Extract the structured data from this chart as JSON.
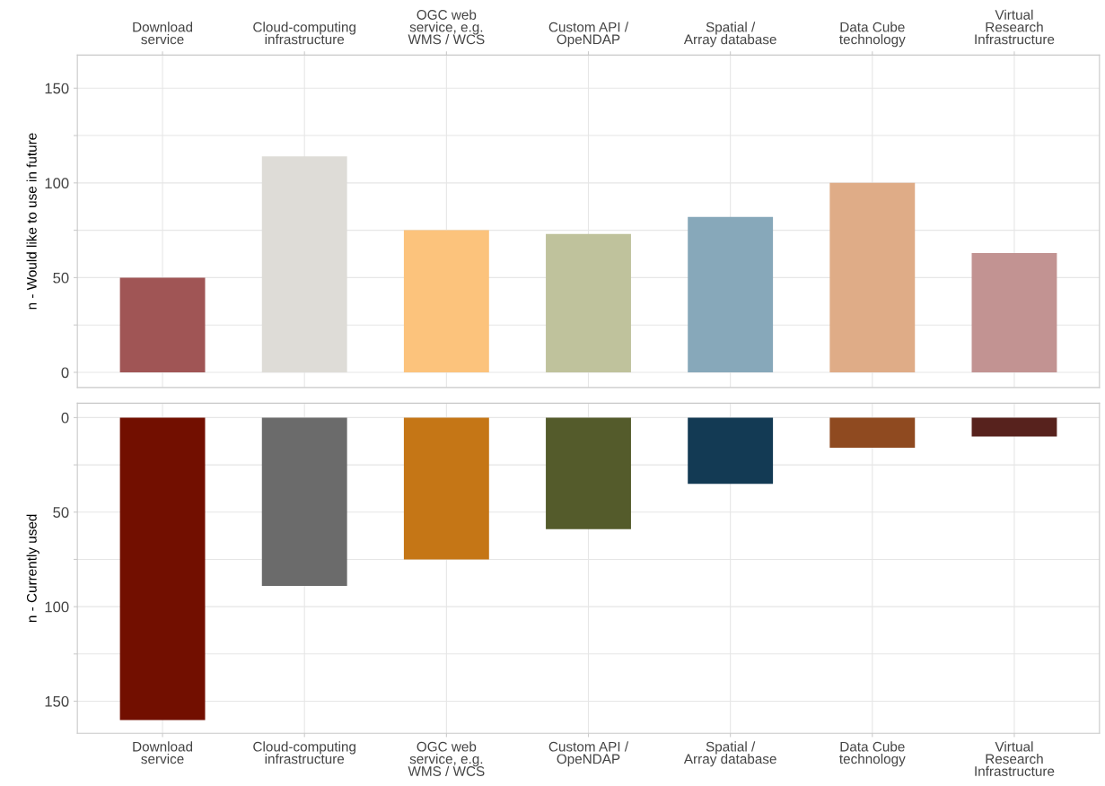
{
  "chart_data": [
    {
      "type": "bar",
      "ylabel": "n - Would like to use in future",
      "categories": [
        "Download\nservice",
        "Cloud-computing\ninfrastructure",
        "OGC web\nservice, e.g.\nWMS / WCS",
        "Custom API /\nOpeNDAP",
        "Spatial /\nArray database",
        "Data Cube\ntechnology",
        "Virtual\nResearch\nInfrastructure"
      ],
      "values": [
        50,
        114,
        75,
        73,
        82,
        100,
        63
      ],
      "colors": [
        "#a05555",
        "#dedcd7",
        "#fcc37c",
        "#bfc29c",
        "#87a8ba",
        "#dfac87",
        "#c29392"
      ],
      "ylim": [
        -8,
        167.5
      ],
      "yticks": [
        0,
        {
          "value": 25,
          "label": null
        },
        50,
        {
          "value": 75,
          "label": null
        },
        100,
        {
          "value": 125,
          "label": null
        },
        150
      ],
      "grid": true
    },
    {
      "type": "bar",
      "ylabel": "n - Currently used",
      "categories": [
        "Download\nservice",
        "Cloud-computing\ninfrastructure",
        "OGC web\nservice, e.g.\nWMS / WCS",
        "Custom API /\nOpeNDAP",
        "Spatial /\nArray database",
        "Data Cube\ntechnology",
        "Virtual\nResearch\nInfrastructure"
      ],
      "values": [
        160,
        89,
        75,
        59,
        35,
        16,
        10
      ],
      "colors": [
        "#720f00",
        "#6b6b6b",
        "#c57616",
        "#545b2b",
        "#133a54",
        "#8f4a20",
        "#57221d"
      ],
      "ylim": [
        167,
        -7.6
      ],
      "yticks": [
        0,
        {
          "value": 25,
          "label": null
        },
        50,
        {
          "value": 75,
          "label": null
        },
        100,
        {
          "value": 125,
          "label": null
        },
        150
      ],
      "grid": true
    }
  ]
}
